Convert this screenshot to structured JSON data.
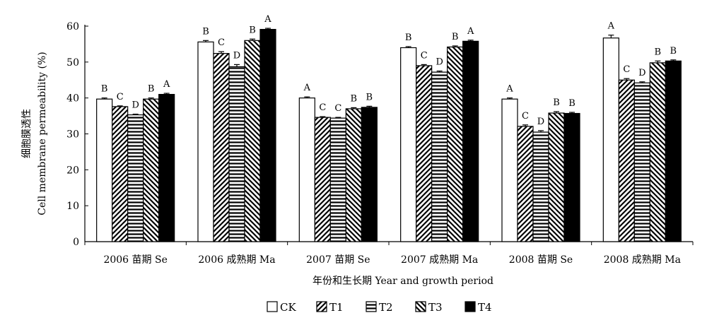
{
  "chart_data": {
    "type": "bar",
    "ylabel_cn": "细胞膜透性",
    "ylabel": "Cell membrane permeability (%)",
    "xlabel": "年份和生长期  Year and growth period",
    "ylim": [
      0,
      60
    ],
    "yticks": [
      0,
      10,
      20,
      30,
      40,
      50,
      60
    ],
    "grid": false,
    "legend_position": "bottom",
    "categories": [
      "2006  苗期  Se",
      "2006  成熟期  Ma",
      "2007  苗期  Se",
      "2007  成熟期  Ma",
      "2008  苗期  Se",
      "2008  成熟期  Ma"
    ],
    "series": [
      {
        "name": "CK",
        "pattern": "white",
        "values": [
          39.7,
          55.6,
          40.0,
          54.0,
          39.7,
          56.7
        ],
        "errors": [
          0.3,
          0.4,
          0.3,
          0.3,
          0.3,
          0.8
        ],
        "labels": [
          "B",
          "B",
          "A",
          "B",
          "A",
          "A"
        ]
      },
      {
        "name": "T1",
        "pattern": "diag-right",
        "values": [
          37.6,
          52.4,
          34.6,
          49.0,
          32.1,
          45.0
        ],
        "errors": [
          0.2,
          0.5,
          0.2,
          0.3,
          0.4,
          0.4
        ],
        "labels": [
          "C",
          "C",
          "C",
          "C",
          "C",
          "C"
        ]
      },
      {
        "name": "T2",
        "pattern": "horizontal",
        "values": [
          35.3,
          48.7,
          34.4,
          47.2,
          30.5,
          44.2
        ],
        "errors": [
          0.2,
          0.6,
          0.2,
          0.3,
          0.4,
          0.3
        ],
        "labels": [
          "D",
          "D",
          "C",
          "D",
          "D",
          "D"
        ]
      },
      {
        "name": "T3",
        "pattern": "diag-left",
        "values": [
          39.7,
          56.0,
          37.0,
          54.2,
          35.8,
          49.8
        ],
        "errors": [
          0.3,
          0.4,
          0.3,
          0.3,
          0.4,
          0.5
        ],
        "labels": [
          "B",
          "B",
          "B",
          "B",
          "B",
          "B"
        ]
      },
      {
        "name": "T4",
        "pattern": "black",
        "values": [
          41.0,
          59.1,
          37.4,
          55.8,
          35.7,
          50.3
        ],
        "errors": [
          0.3,
          0.3,
          0.3,
          0.3,
          0.3,
          0.3
        ],
        "labels": [
          "A",
          "A",
          "B",
          "A",
          "B",
          "B"
        ]
      }
    ]
  }
}
